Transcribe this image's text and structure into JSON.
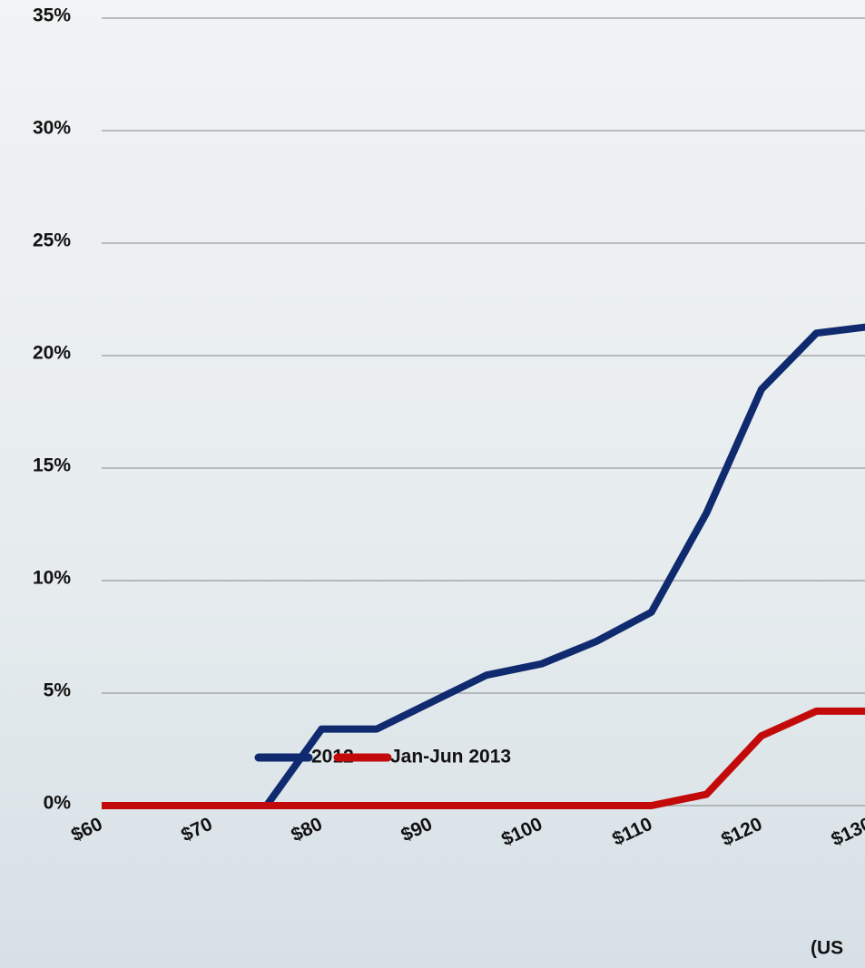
{
  "chart_data": {
    "type": "line",
    "x": [
      60,
      65,
      70,
      75,
      80,
      85,
      90,
      95,
      100,
      105,
      110,
      115,
      120,
      125,
      130
    ],
    "series": [
      {
        "name": "2012",
        "color": "#0f2a6e",
        "values": [
          0,
          0,
          0,
          0,
          3.4,
          3.4,
          4.6,
          5.8,
          6.3,
          7.3,
          8.6,
          13.0,
          18.5,
          21.0,
          21.3
        ]
      },
      {
        "name": "Jan-Jun 2013",
        "color": "#c30a0a",
        "values": [
          0,
          0,
          0,
          0,
          0,
          0,
          0,
          0,
          0,
          0,
          0,
          0.5,
          3.1,
          4.2,
          4.2
        ]
      }
    ],
    "xlim": [
      60,
      130
    ],
    "xticks": [
      {
        "value": 60,
        "label": "$60"
      },
      {
        "value": 70,
        "label": "$70"
      },
      {
        "value": 80,
        "label": "$80"
      },
      {
        "value": 90,
        "label": "$90"
      },
      {
        "value": 100,
        "label": "$100"
      },
      {
        "value": 110,
        "label": "$110"
      },
      {
        "value": 120,
        "label": "$120"
      },
      {
        "value": 130,
        "label": "$130"
      }
    ],
    "ylim": [
      0,
      35
    ],
    "yticks": [
      {
        "value": 0,
        "label": "0%"
      },
      {
        "value": 5,
        "label": "5%"
      },
      {
        "value": 10,
        "label": "10%"
      },
      {
        "value": 15,
        "label": "15%"
      },
      {
        "value": 20,
        "label": "20%"
      },
      {
        "value": 25,
        "label": "25%"
      },
      {
        "value": 30,
        "label": "30%"
      },
      {
        "value": 35,
        "label": "35%"
      }
    ],
    "xlabel": "(US",
    "grid": true
  }
}
